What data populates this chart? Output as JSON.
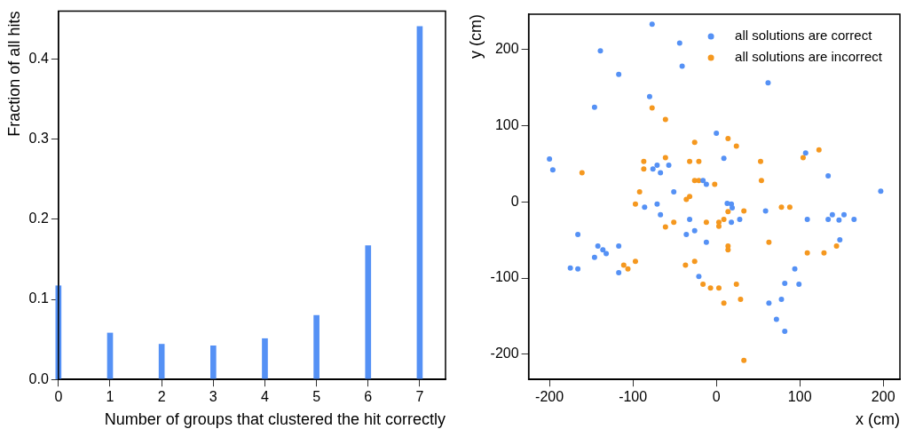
{
  "chart_data": [
    {
      "type": "bar",
      "x": [
        0,
        1,
        2,
        3,
        4,
        5,
        6,
        7
      ],
      "values": [
        0.117,
        0.058,
        0.044,
        0.042,
        0.051,
        0.08,
        0.167,
        0.441
      ],
      "color": "#5591f5",
      "xlabel": "Number of groups that clustered the hit correctly",
      "ylabel": "Fraction of all hits",
      "xlim": [
        0,
        7.5
      ],
      "xticks": [
        0,
        1,
        2,
        3,
        4,
        5,
        6,
        7
      ],
      "ylim": [
        0,
        0.46
      ],
      "yticks": [
        {
          "value": 0,
          "label": "0.0"
        },
        0.1,
        0.2,
        0.3,
        0.4
      ],
      "legend": false
    },
    {
      "type": "scatter",
      "xlabel": "x (cm)",
      "ylabel": "y (cm)",
      "legend": "top right",
      "marker": "circle",
      "xlim": [
        -225,
        220
      ],
      "xticks": [
        -200,
        -100,
        0,
        100,
        200
      ],
      "ylim": [
        -233,
        246
      ],
      "yticks": [
        -200,
        -100,
        0,
        100,
        200
      ],
      "series": [
        {
          "name": "all solutions are correct",
          "color": "#5591f5",
          "type": "scatter",
          "x": [
            -80,
            -132,
            82,
            94,
            63,
            78,
            99,
            134,
            139,
            147,
            165,
            153,
            109,
            13,
            18,
            19,
            28,
            18,
            59,
            9,
            -16,
            -12,
            -146,
            -57,
            -71,
            -76,
            -67,
            -12,
            -51,
            -71,
            -86,
            -67,
            -32,
            -26,
            -36,
            -146,
            -142,
            -136,
            -166,
            -166,
            -117,
            -21,
            -200,
            -196,
            197,
            -117,
            62,
            0,
            107,
            134,
            -77,
            -139,
            -44,
            -41,
            72,
            82,
            -175,
            -117,
            148
          ],
          "values": [
            138,
            -68,
            -107,
            -88,
            -133,
            -128,
            -108,
            -23,
            -17,
            -24,
            -23,
            -17,
            -23,
            -2,
            -3,
            -8,
            -23,
            -27,
            -12,
            57,
            28,
            -53,
            124,
            48,
            48,
            43,
            38,
            23,
            13,
            -3,
            -7,
            -17,
            -23,
            -38,
            -43,
            -73,
            -58,
            -63,
            -88,
            -43,
            -58,
            -98,
            56,
            42,
            14,
            167,
            156,
            90,
            64,
            34,
            233,
            198,
            208,
            178,
            -154,
            -170,
            -87,
            -93,
            -50
          ]
        },
        {
          "name": "all solutions are incorrect",
          "color": "#f5981f",
          "type": "scatter",
          "x": [
            14,
            24,
            -21,
            14,
            9,
            3,
            3,
            63,
            14,
            14,
            54,
            53,
            104,
            123,
            -61,
            -32,
            -26,
            -21,
            -2,
            -36,
            -32,
            -61,
            -51,
            -12,
            33,
            -97,
            -77,
            -161,
            -87,
            -87,
            -92,
            -26,
            -61,
            -111,
            -106,
            -97,
            -37,
            -26,
            -16,
            -7,
            3,
            9,
            24,
            29,
            33,
            78,
            88,
            109,
            129,
            144
          ],
          "values": [
            83,
            73,
            53,
            -13,
            -23,
            -27,
            -32,
            -53,
            -63,
            -58,
            28,
            53,
            58,
            68,
            108,
            53,
            28,
            28,
            23,
            3,
            7,
            -33,
            -27,
            -27,
            -12,
            -3,
            123,
            38,
            43,
            53,
            13,
            78,
            58,
            -83,
            -88,
            -78,
            -83,
            -78,
            -108,
            -113,
            -113,
            -133,
            -108,
            -128,
            -208,
            -7,
            -7,
            -67,
            -67,
            -58
          ]
        }
      ]
    }
  ]
}
